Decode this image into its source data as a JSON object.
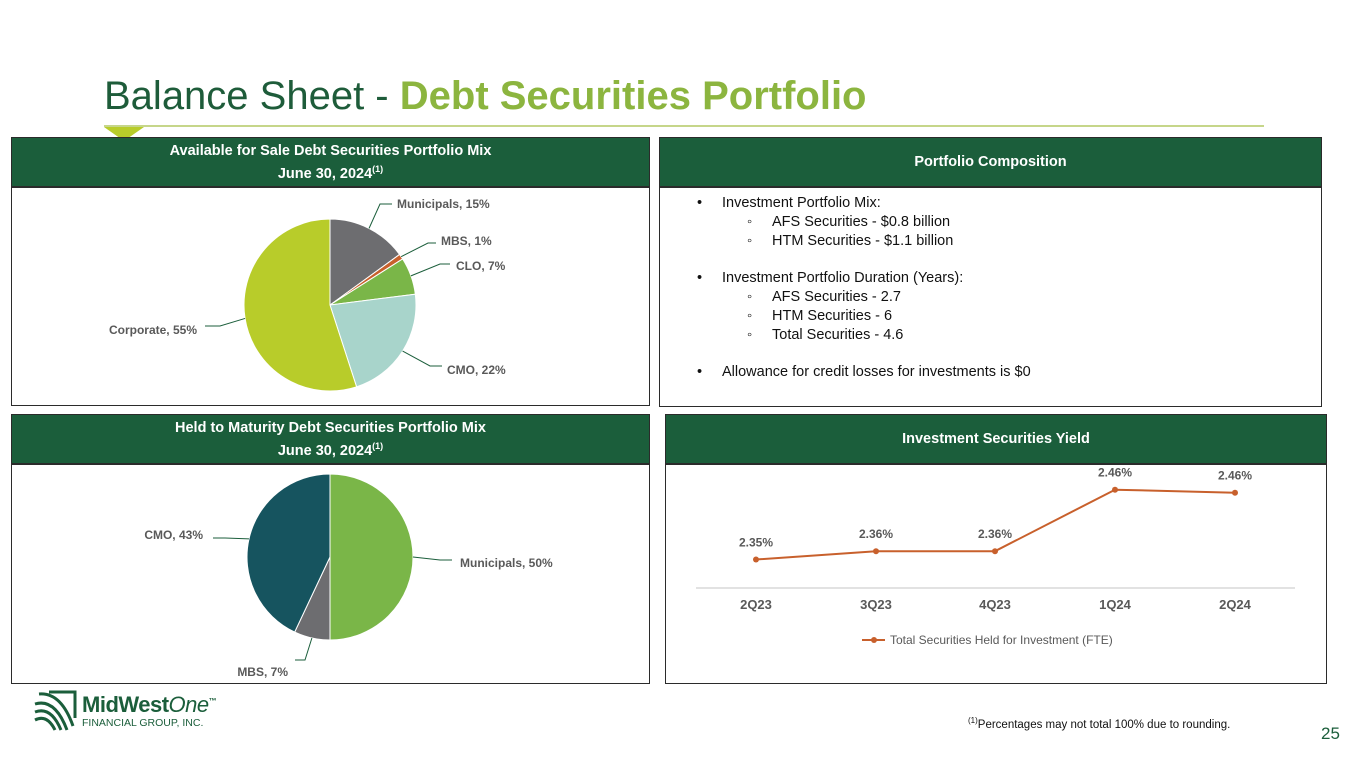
{
  "title": {
    "main": "Balance Sheet - ",
    "accent": "Debt Securities Portfolio"
  },
  "afs": {
    "header_line1": "Available for Sale Debt Securities Portfolio Mix",
    "header_line2": "June 30, 2024",
    "header_sup": "(1)"
  },
  "htm": {
    "header_line1": "Held to Maturity Debt Securities Portfolio Mix",
    "header_line2": "June 30, 2024",
    "header_sup": "(1)"
  },
  "composition": {
    "header": "Portfolio Composition",
    "b1": "Investment Portfolio Mix:",
    "b1_s1": "AFS Securities - $0.8 billion",
    "b1_s2": "HTM Securities - $1.1 billion",
    "b2": "Investment Portfolio Duration (Years):",
    "b2_s1": "AFS Securities - 2.7",
    "b2_s2": "HTM Securities - 6",
    "b2_s3": "Total Securities - 4.6",
    "b3": "Allowance for credit losses for investments is $0"
  },
  "yield_panel": {
    "header": "Investment Securities Yield"
  },
  "chart_data": [
    {
      "type": "pie",
      "title": "Available for Sale Debt Securities Portfolio Mix June 30, 2024(1)",
      "slices": [
        {
          "name": "Municipals",
          "value": 15,
          "label": "Municipals, 15%",
          "color": "#6d6d70"
        },
        {
          "name": "MBS",
          "value": 1,
          "label": "MBS, 1%",
          "color": "#c8602c"
        },
        {
          "name": "CLO",
          "value": 7,
          "label": "CLO, 7%",
          "color": "#7ab648"
        },
        {
          "name": "CMO",
          "value": 22,
          "label": "CMO, 22%",
          "color": "#a8d4cb"
        },
        {
          "name": "Corporate",
          "value": 55,
          "label": "Corporate, 55%",
          "color": "#b8cc2a"
        }
      ]
    },
    {
      "type": "pie",
      "title": "Held to Maturity Debt Securities Portfolio Mix June 30, 2024(1)",
      "slices": [
        {
          "name": "Municipals",
          "value": 50,
          "label": "Municipals, 50%",
          "color": "#7ab648"
        },
        {
          "name": "MBS",
          "value": 7,
          "label": "MBS, 7%",
          "color": "#6d6d70"
        },
        {
          "name": "CMO",
          "value": 43,
          "label": "CMO, 43%",
          "color": "#16545f"
        }
      ]
    },
    {
      "type": "line",
      "title": "Investment Securities Yield",
      "categories": [
        "2Q23",
        "3Q23",
        "4Q23",
        "1Q24",
        "2Q24"
      ],
      "series": [
        {
          "name": "Total Securities Held for Investment (FTE)",
          "values": [
            2.35,
            2.36,
            2.36,
            2.46,
            2.46
          ],
          "labels": [
            "2.35%",
            "2.36%",
            "2.36%",
            "2.46%",
            "2.46%"
          ],
          "color": "#c8602c"
        }
      ],
      "legend": "bottom"
    }
  ],
  "logo": {
    "name_main": "MidWest",
    "name_italic": "One",
    "tm": "™",
    "subtitle": "FINANCIAL GROUP, INC."
  },
  "footnote": {
    "sup": "(1)",
    "text": "Percentages may not total 100% due to rounding."
  },
  "page_number": "25"
}
